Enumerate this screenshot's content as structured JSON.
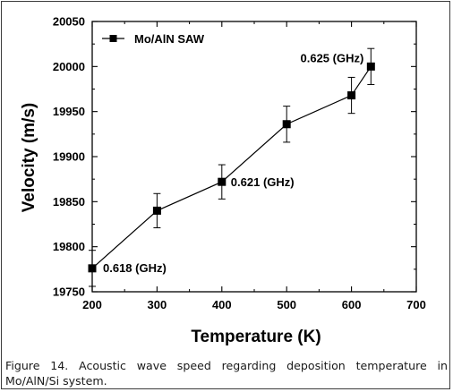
{
  "chart_data": {
    "type": "line",
    "xlabel": "Temperature (K)",
    "ylabel": "Velocity (m/s)",
    "xlim": [
      200,
      700
    ],
    "ylim": [
      19750,
      20050
    ],
    "xticks": [
      200,
      300,
      400,
      500,
      600,
      700
    ],
    "yticks": [
      19750,
      19800,
      19850,
      19900,
      19950,
      20000,
      20050
    ],
    "grid": false,
    "legend": "top-left",
    "marker": "square",
    "series": [
      {
        "name": "Mo/AlN SAW",
        "color": "#000000",
        "x": [
          200,
          300,
          400,
          500,
          600,
          630
        ],
        "y": [
          19776,
          19840,
          19872,
          19936,
          19968,
          20000
        ],
        "error": [
          20,
          19,
          19,
          20,
          20,
          20
        ]
      }
    ],
    "annotations": [
      {
        "text": "0.618 (GHz)",
        "x": 200,
        "y": 19776
      },
      {
        "text": "0.621 (GHz)",
        "x": 400,
        "y": 19872
      },
      {
        "text": "0.625 (GHz)",
        "x": 630,
        "y": 20000
      }
    ]
  },
  "caption": "Figure 14. Acoustic wave speed regarding deposition temperature in Mo/AlN/Si system."
}
